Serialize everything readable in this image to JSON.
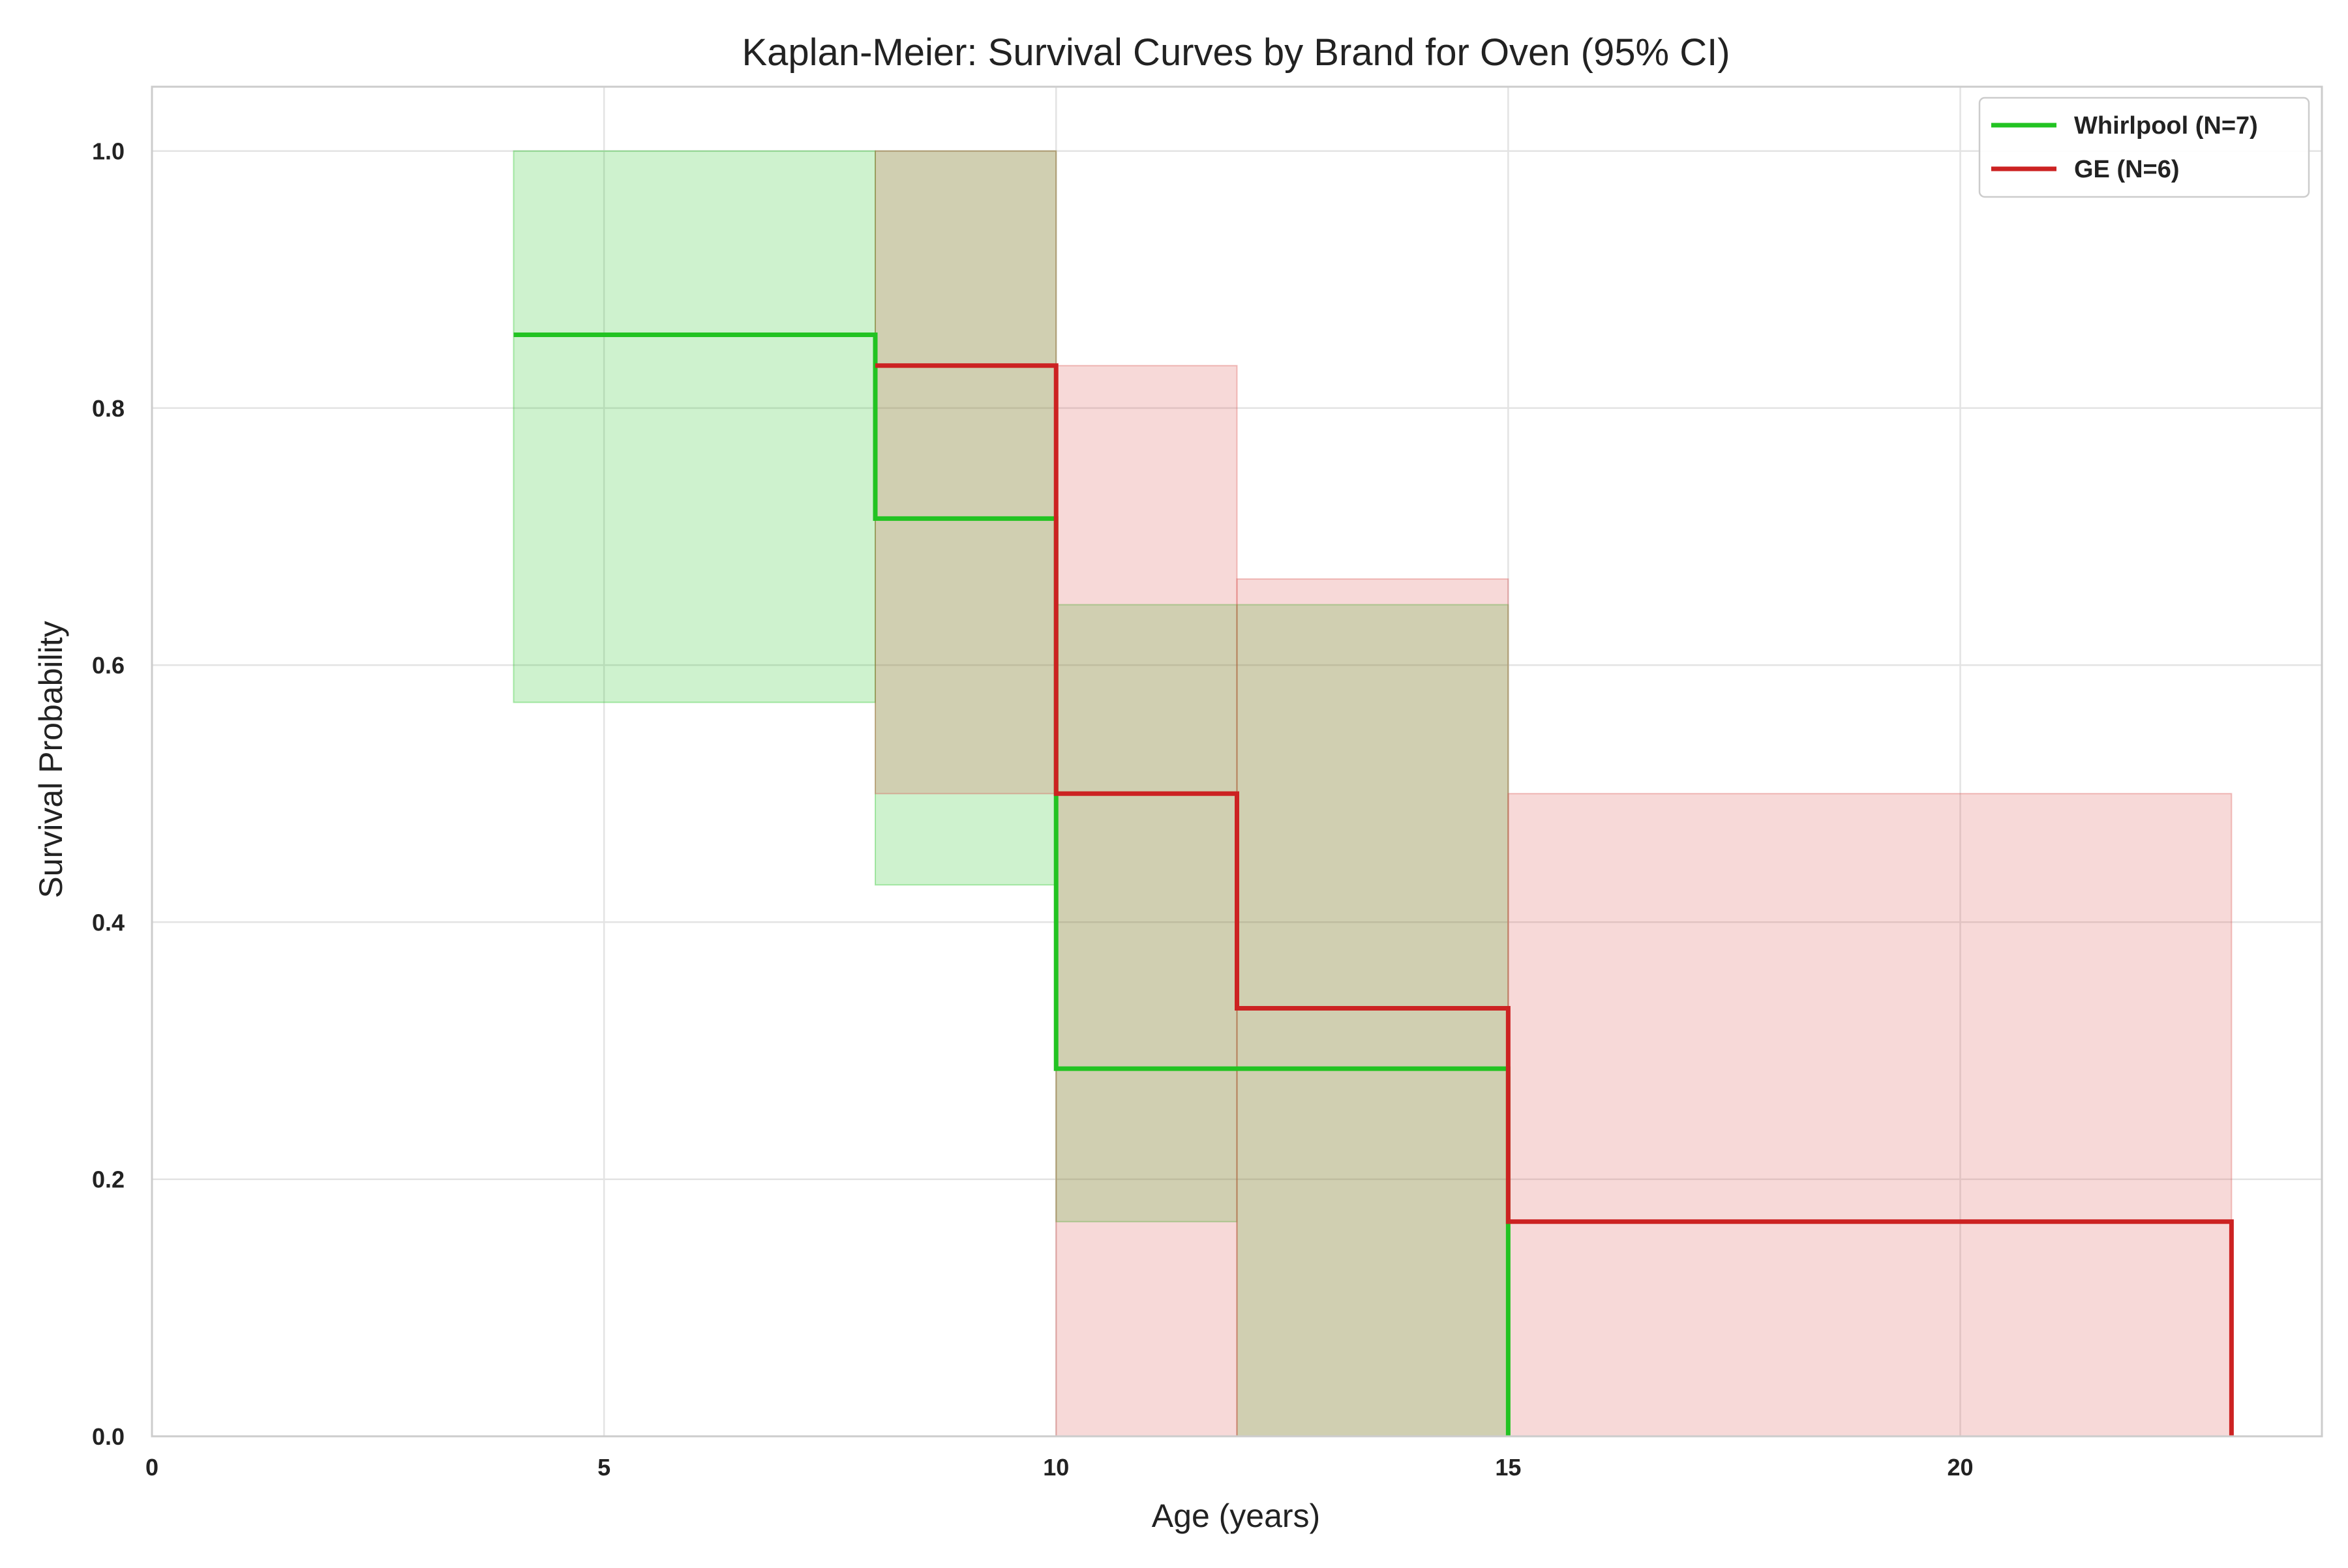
{
  "chart_data": {
    "type": "line",
    "title": "Kaplan-Meier: Survival Curves by Brand for Oven (95% CI)",
    "xlabel": "Age (years)",
    "ylabel": "Survival Probability",
    "xlim": [
      0,
      24
    ],
    "ylim": [
      0,
      1.05
    ],
    "xticks": [
      0,
      5,
      10,
      15,
      20
    ],
    "xtick_labels": [
      "0",
      "5",
      "10",
      "15",
      "20"
    ],
    "yticks": [
      0.0,
      0.2,
      0.4,
      0.6,
      0.8,
      1.0
    ],
    "ytick_labels": [
      "0.0",
      "0.2",
      "0.4",
      "0.6",
      "0.8",
      "1.0"
    ],
    "grid": true,
    "legend_position": "top-right",
    "series": [
      {
        "name": "Whirlpool (N=7)",
        "color": "#22c322",
        "ci_color": "#22c322",
        "x": [
          4,
          8,
          10,
          15
        ],
        "y": [
          0.857,
          0.714,
          0.286,
          0.0
        ],
        "ci_lower": [
          0.571,
          0.429,
          0.167,
          0.0
        ],
        "ci_upper": [
          1.0,
          1.0,
          0.647,
          0.0
        ],
        "ci_segments": [
          {
            "x0": 4,
            "x1": 8,
            "lower": 0.571,
            "upper": 1.0
          },
          {
            "x0": 8,
            "x1": 10,
            "lower": 0.429,
            "upper": 1.0
          },
          {
            "x0": 10,
            "x1": 12,
            "lower": 0.167,
            "upper": 0.647
          },
          {
            "x0": 12,
            "x1": 15,
            "lower": 0.0,
            "upper": 0.647
          }
        ]
      },
      {
        "name": "GE (N=6)",
        "color": "#cc2222",
        "ci_color": "#d9534f",
        "x": [
          8,
          10,
          12,
          15,
          23
        ],
        "y": [
          0.833,
          0.5,
          0.333,
          0.167,
          0.0
        ],
        "ci_lower": [
          0.5,
          0.0,
          0.0,
          0.0,
          0.0
        ],
        "ci_upper": [
          1.0,
          0.833,
          0.667,
          0.5,
          0.0
        ],
        "ci_segments": [
          {
            "x0": 8,
            "x1": 10,
            "lower": 0.5,
            "upper": 1.0
          },
          {
            "x0": 10,
            "x1": 12,
            "lower": 0.0,
            "upper": 0.833
          },
          {
            "x0": 12,
            "x1": 15,
            "lower": 0.0,
            "upper": 0.667
          },
          {
            "x0": 15,
            "x1": 23,
            "lower": 0.0,
            "upper": 0.5
          }
        ]
      }
    ]
  }
}
